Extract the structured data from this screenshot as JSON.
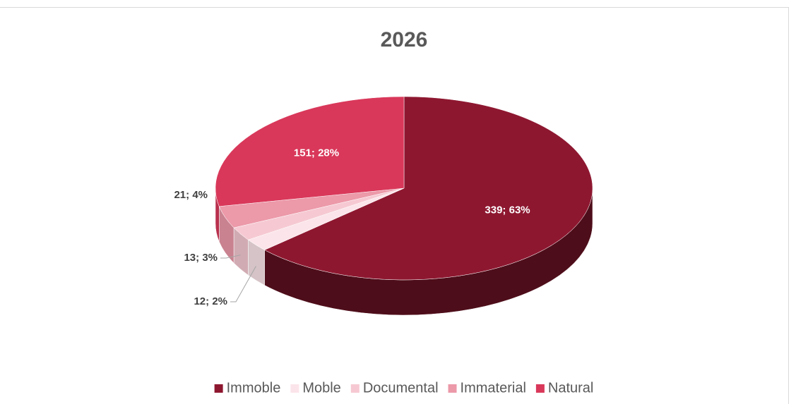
{
  "chart_data": {
    "type": "pie",
    "title": "2026",
    "categories": [
      "Immoble",
      "Moble",
      "Documental",
      "Immaterial",
      "Natural"
    ],
    "values": [
      339,
      12,
      13,
      21,
      151
    ],
    "value_labels": [
      "339; 63%",
      "12; 2%",
      "13; 3%",
      "21; 4%",
      "151; 28%"
    ],
    "colors": [
      "#8e1730",
      "#fbe5ea",
      "#f6c9d2",
      "#ec99a9",
      "#d9385a"
    ],
    "legend": "bottom"
  }
}
